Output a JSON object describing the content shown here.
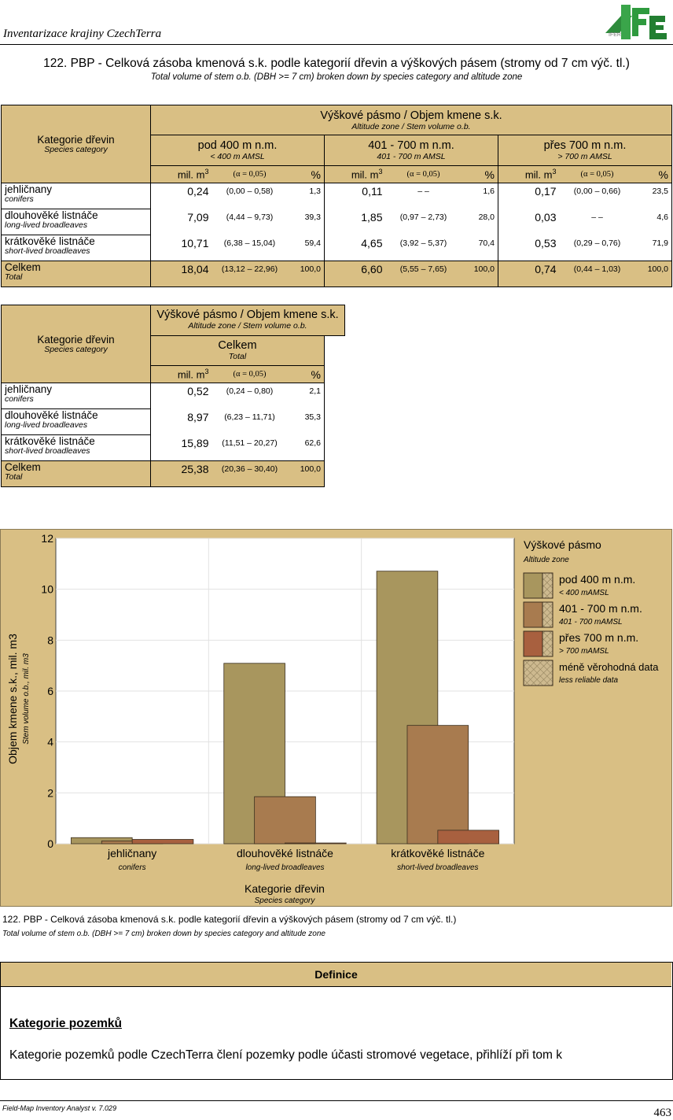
{
  "header": {
    "title": "Inventarizace krajiny CzechTerra",
    "logo_text": "IFER"
  },
  "page": {
    "title": "122. PBP - Celková zásoba kmenová s.k. podle kategorií dřevin a výškových pásem (stromy od 7 cm výč. tl.)",
    "subtitle": "Total volume of stem o.b. (DBH >= 7 cm) broken down by species category and altitude zone"
  },
  "table1": {
    "cat_header": "Kategorie dřevin",
    "cat_header_en": "Species category",
    "group_header": "Výškové pásmo / Objem kmene s.k.",
    "group_header_en": "Altitude zone / Stem volume o.b.",
    "zones": [
      {
        "name": "pod 400 m n.m.",
        "name_en": "< 400 m AMSL"
      },
      {
        "name": "401 - 700 m n.m.",
        "name_en": "401 - 700 m AMSL"
      },
      {
        "name": "přes 700 m n.m.",
        "name_en": "> 700 m AMSL"
      }
    ],
    "unit": "mil. m",
    "unit_sup": "3",
    "alpha": "(α = 0,05)",
    "pct": "%",
    "rows": [
      {
        "name": "jehličnany",
        "name_en": "conifers",
        "cells": [
          [
            "0,24",
            "(0,00  –  0,58)",
            "1,3"
          ],
          [
            "0,11",
            "–       –",
            "1,6"
          ],
          [
            "0,17",
            "(0,00  –  0,66)",
            "23,5"
          ]
        ]
      },
      {
        "name": "dlouhověké listnáče",
        "name_en": "long-lived broadleaves",
        "cells": [
          [
            "7,09",
            "(4,44  –  9,73)",
            "39,3"
          ],
          [
            "1,85",
            "(0,97  –  2,73)",
            "28,0"
          ],
          [
            "0,03",
            "–       –",
            "4,6"
          ]
        ]
      },
      {
        "name": "krátkověké listnáče",
        "name_en": "short-lived broadleaves",
        "cells": [
          [
            "10,71",
            "(6,38 – 15,04)",
            "59,4"
          ],
          [
            "4,65",
            "(3,92  –  5,37)",
            "70,4"
          ],
          [
            "0,53",
            "(0,29  –  0,76)",
            "71,9"
          ]
        ]
      },
      {
        "name": "Celkem",
        "name_en": "Total",
        "cells": [
          [
            "18,04",
            "(13,12 – 22,96)",
            "100,0"
          ],
          [
            "6,60",
            "(5,55  –  7,65)",
            "100,0"
          ],
          [
            "0,74",
            "(0,44  –  1,03)",
            "100,0"
          ]
        ]
      }
    ]
  },
  "table2": {
    "cat_header": "Kategorie dřevin",
    "cat_header_en": "Species category",
    "group_header": "Výškové pásmo / Objem kmene s.k.",
    "group_header_en": "Altitude zone / Stem volume o.b.",
    "col": "Celkem",
    "col_en": "Total",
    "unit": "mil. m",
    "unit_sup": "3",
    "alpha": "(α = 0,05)",
    "pct": "%",
    "rows": [
      {
        "name": "jehličnany",
        "name_en": "conifers",
        "cells": [
          "0,52",
          "(0,24  –  0,80)",
          "2,1"
        ]
      },
      {
        "name": "dlouhověké listnáče",
        "name_en": "long-lived broadleaves",
        "cells": [
          "8,97",
          "(6,23 – 11,71)",
          "35,3"
        ]
      },
      {
        "name": "krátkověké listnáče",
        "name_en": "short-lived broadleaves",
        "cells": [
          "15,89",
          "(11,51 – 20,27)",
          "62,6"
        ]
      },
      {
        "name": "Celkem",
        "name_en": "Total",
        "cells": [
          "25,38",
          "(20,36 – 30,40)",
          "100,0"
        ]
      }
    ]
  },
  "chart_data": {
    "type": "bar",
    "categories": [
      "jehličnany",
      "dlouhověké listnáče",
      "krátkověké listnáče"
    ],
    "categories_en": [
      "conifers",
      "long-lived broadleaves",
      "short-lived broadleaves"
    ],
    "series": [
      {
        "name": "pod 400 m n.m.",
        "name_en": "< 400 mAMSL",
        "values": [
          0.24,
          7.09,
          10.71
        ],
        "color": "#a8965e"
      },
      {
        "name": "401 - 700 m n.m.",
        "name_en": "401 - 700 mAMSL",
        "values": [
          0.11,
          1.85,
          4.65
        ],
        "color": "#a87b4f"
      },
      {
        "name": "přes 700 m n.m.",
        "name_en": "> 700 mAMSL",
        "values": [
          0.17,
          0.03,
          0.53
        ],
        "color": "#a8603f"
      }
    ],
    "less_reliable": {
      "name": "méně věrohodná data",
      "name_en": "less reliable data",
      "color": "#cdb98f"
    },
    "xlabel": "Kategorie dřevin",
    "xlabel_en": "Species category",
    "ylabel": "Objem kmene s.k., mil. m3",
    "ylabel_en": "Stem volume o.b., mil. m3",
    "legend_title": "Výškové pásmo",
    "legend_title_en": "Altitude zone",
    "ylim": [
      0,
      12
    ],
    "yticks": [
      "0",
      "2",
      "4",
      "6",
      "8",
      "10",
      "12"
    ],
    "grid": true,
    "legend_position": "right"
  },
  "caption": {
    "line1": "122. PBP - Celková zásoba kmenová s.k. podle kategorií dřevin a výškových pásem (stromy od 7 cm výč. tl.)",
    "line2": "Total volume of stem o.b. (DBH >= 7 cm) broken down by species category and altitude zone"
  },
  "definition": {
    "header": "Definice",
    "heading": "Kategorie pozemků",
    "text": "Kategorie pozemků podle CzechTerra člení pozemky podle účasti stromové vegetace, přihlíží při tom k"
  },
  "footer": {
    "left": "Field-Map Inventory Analyst v. 7.029",
    "page": "463"
  }
}
